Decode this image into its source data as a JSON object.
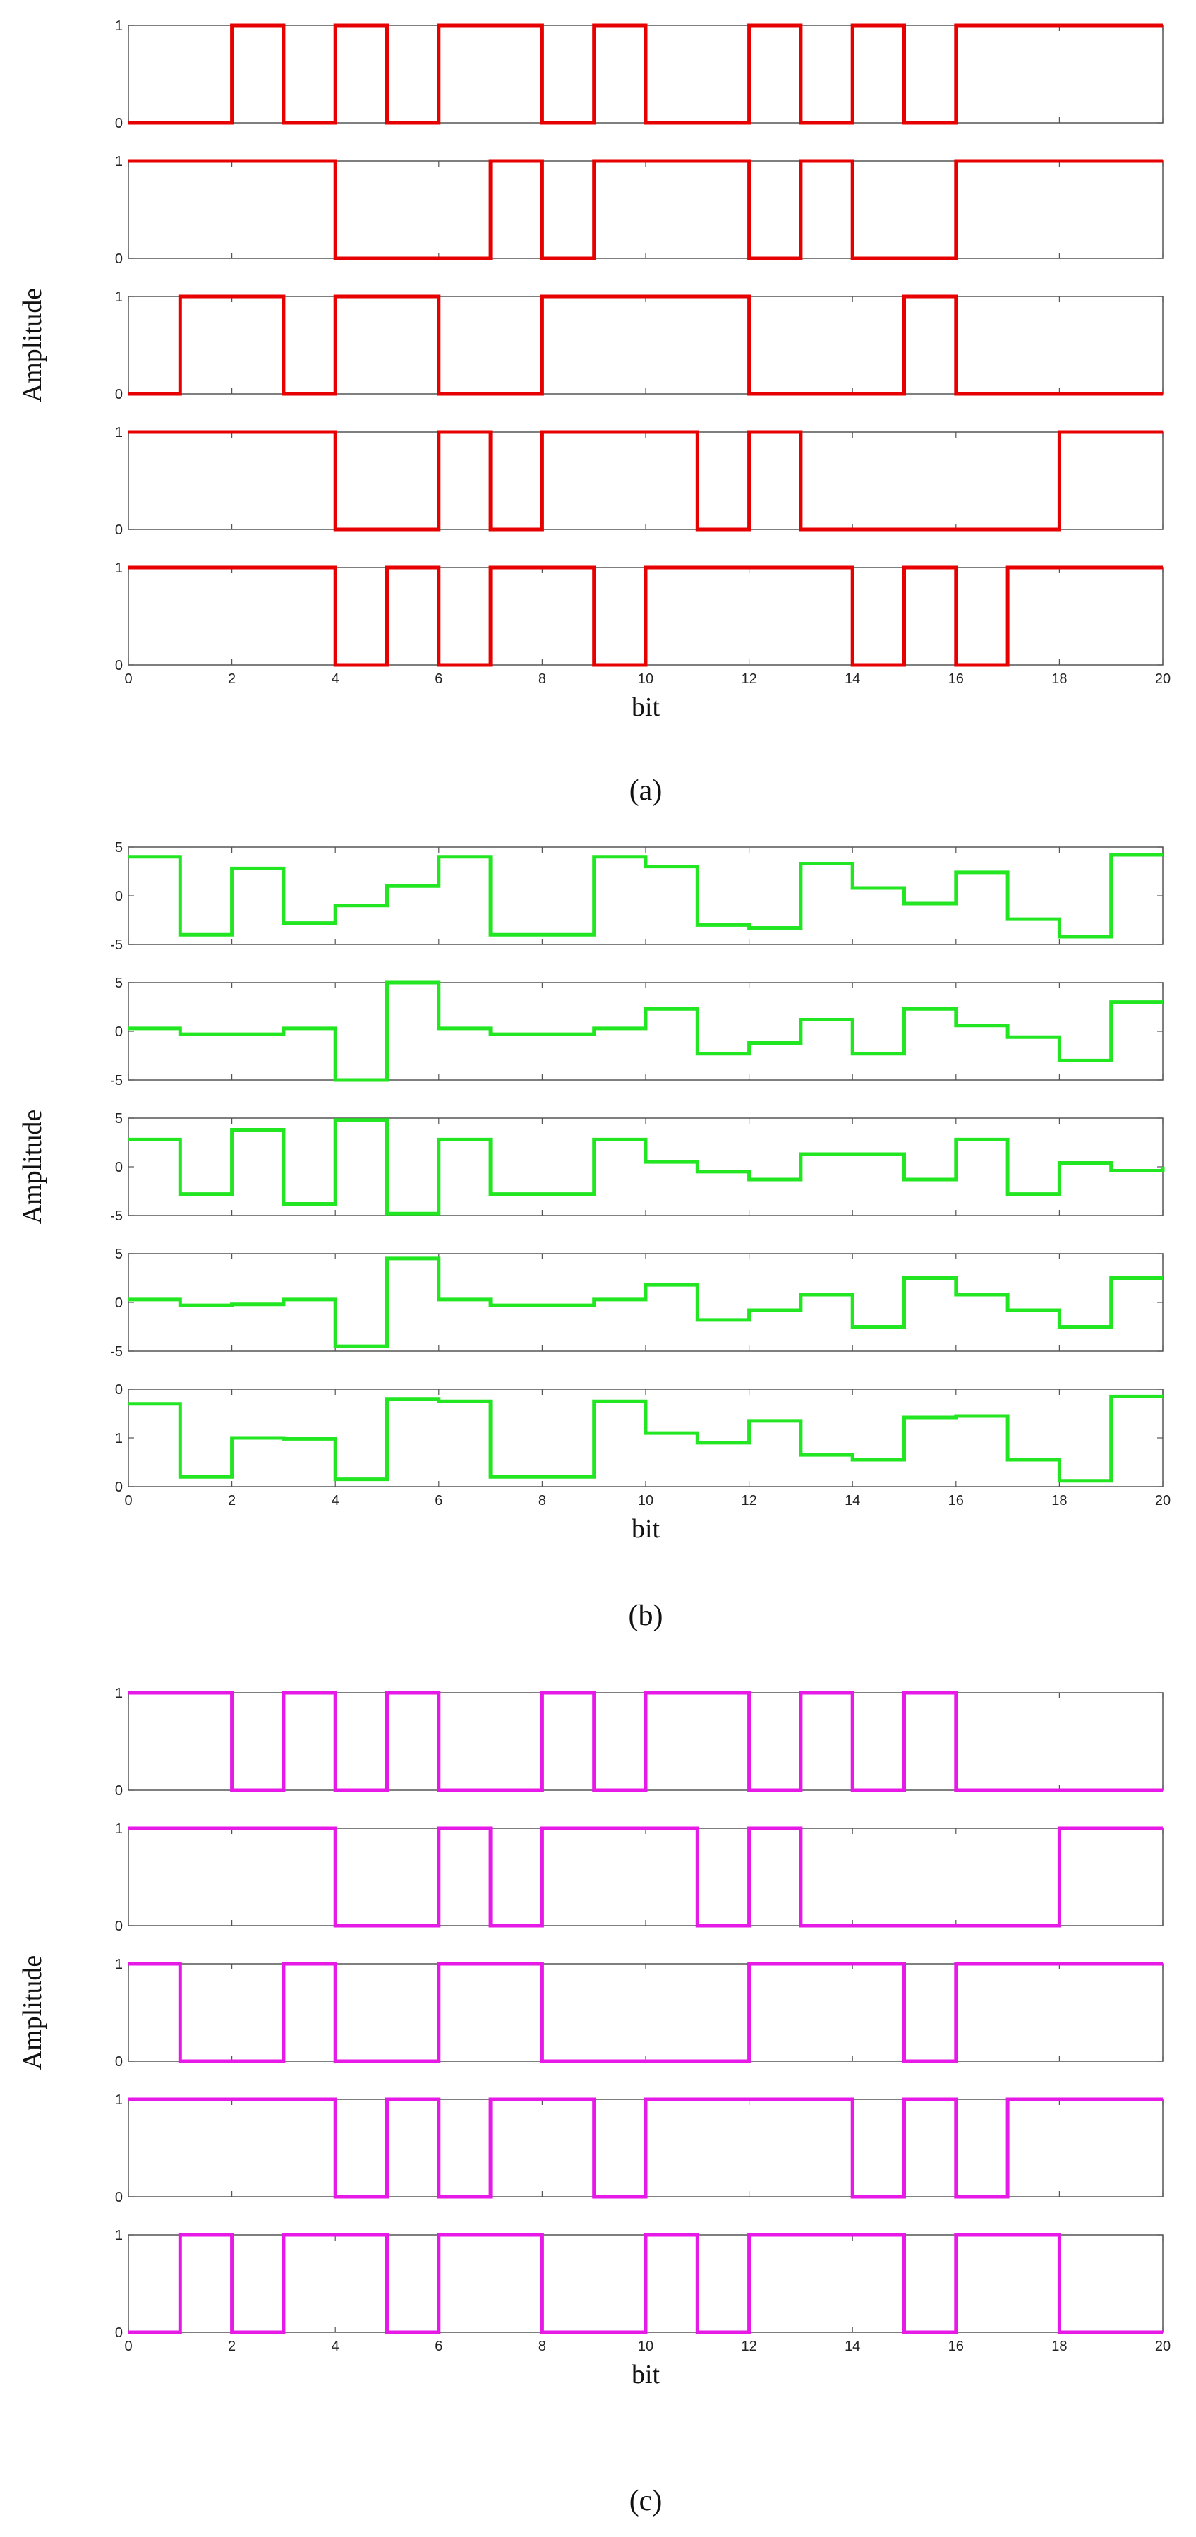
{
  "figure": {
    "ylabel": "Amplitude",
    "xlabel": "bit"
  },
  "chart_data": [
    {
      "panel": "(a)",
      "caption": "(a)",
      "type": "line",
      "step": "post",
      "color": "#e60000",
      "xlabel": "bit",
      "ylabel": "Amplitude",
      "xlim": [
        0,
        20
      ],
      "xticks": [
        0,
        2,
        4,
        6,
        8,
        10,
        12,
        14,
        16,
        18,
        20
      ],
      "subplots": [
        {
          "ylim": [
            0,
            1
          ],
          "yticks": [
            0,
            1
          ],
          "x": [
            0,
            1,
            2,
            3,
            4,
            5,
            6,
            7,
            8,
            9,
            10,
            11,
            12,
            13,
            14,
            15,
            16,
            17,
            18,
            19,
            20
          ],
          "values": [
            0,
            0,
            1,
            0,
            1,
            0,
            1,
            1,
            0,
            1,
            0,
            0,
            1,
            0,
            1,
            0,
            1,
            1,
            1,
            1,
            1
          ]
        },
        {
          "ylim": [
            0,
            1
          ],
          "yticks": [
            0,
            1
          ],
          "x": [
            0,
            1,
            2,
            3,
            4,
            5,
            6,
            7,
            8,
            9,
            10,
            11,
            12,
            13,
            14,
            15,
            16,
            17,
            18,
            19,
            20
          ],
          "values": [
            1,
            1,
            1,
            1,
            0,
            0,
            0,
            1,
            0,
            1,
            1,
            1,
            0,
            1,
            0,
            0,
            1,
            1,
            1,
            1,
            1
          ]
        },
        {
          "ylim": [
            0,
            1
          ],
          "yticks": [
            0,
            1
          ],
          "x": [
            0,
            1,
            2,
            3,
            4,
            5,
            6,
            7,
            8,
            9,
            10,
            11,
            12,
            13,
            14,
            15,
            16,
            17,
            18,
            19,
            20
          ],
          "values": [
            0,
            1,
            1,
            0,
            1,
            1,
            0,
            0,
            1,
            1,
            1,
            1,
            0,
            0,
            0,
            1,
            0,
            0,
            0,
            0,
            0
          ]
        },
        {
          "ylim": [
            0,
            1
          ],
          "yticks": [
            0,
            1
          ],
          "x": [
            0,
            1,
            2,
            3,
            4,
            5,
            6,
            7,
            8,
            9,
            10,
            11,
            12,
            13,
            14,
            15,
            16,
            17,
            18,
            19,
            20
          ],
          "values": [
            1,
            1,
            1,
            1,
            0,
            0,
            1,
            0,
            1,
            1,
            1,
            0,
            1,
            0,
            0,
            0,
            0,
            0,
            1,
            1,
            1
          ]
        },
        {
          "ylim": [
            0,
            1
          ],
          "yticks": [
            0,
            1
          ],
          "x": [
            0,
            1,
            2,
            3,
            4,
            5,
            6,
            7,
            8,
            9,
            10,
            11,
            12,
            13,
            14,
            15,
            16,
            17,
            18,
            19,
            20
          ],
          "values": [
            1,
            1,
            1,
            1,
            0,
            1,
            0,
            1,
            1,
            0,
            1,
            1,
            1,
            1,
            0,
            1,
            0,
            1,
            1,
            1,
            1
          ]
        }
      ]
    },
    {
      "panel": "(b)",
      "caption": "(b)",
      "type": "line",
      "step": "post",
      "color": "#22e622",
      "xlabel": "bit",
      "ylabel": "Amplitude",
      "xlim": [
        0,
        20
      ],
      "xticks": [
        0,
        2,
        4,
        6,
        8,
        10,
        12,
        14,
        16,
        18,
        20
      ],
      "subplots": [
        {
          "ylim": [
            -5,
            5
          ],
          "yticks": [
            -5,
            0,
            5
          ],
          "x": [
            0,
            1,
            2,
            3,
            4,
            5,
            6,
            7,
            8,
            9,
            10,
            11,
            12,
            13,
            14,
            15,
            16,
            17,
            18,
            19,
            20
          ],
          "values": [
            4,
            -4,
            2.8,
            -2.8,
            -1,
            1,
            4,
            -4,
            -4,
            4,
            3,
            -3,
            -3.3,
            3.3,
            0.8,
            -0.8,
            2.4,
            -2.4,
            -4.2,
            4.2,
            4.2
          ]
        },
        {
          "ylim": [
            -5,
            5
          ],
          "yticks": [
            -5,
            0,
            5
          ],
          "x": [
            0,
            1,
            2,
            3,
            4,
            5,
            6,
            7,
            8,
            9,
            10,
            11,
            12,
            13,
            14,
            15,
            16,
            17,
            18,
            19,
            20
          ],
          "values": [
            0.3,
            -0.3,
            -0.3,
            0.3,
            -5,
            5,
            0.3,
            -0.3,
            -0.3,
            0.3,
            2.3,
            -2.3,
            -1.2,
            1.2,
            -2.3,
            2.3,
            0.6,
            -0.6,
            -3,
            3,
            3
          ]
        },
        {
          "ylim": [
            -5,
            5
          ],
          "yticks": [
            -5,
            0,
            5
          ],
          "x": [
            0,
            1,
            2,
            3,
            4,
            5,
            6,
            7,
            8,
            9,
            10,
            11,
            12,
            13,
            14,
            15,
            16,
            17,
            18,
            19,
            20
          ],
          "values": [
            2.8,
            -2.8,
            3.8,
            -3.8,
            4.8,
            -4.8,
            2.8,
            -2.8,
            -2.8,
            2.8,
            0.5,
            -0.5,
            -1.3,
            1.3,
            1.3,
            -1.3,
            2.8,
            -2.8,
            0.4,
            -0.4,
            0
          ]
        },
        {
          "ylim": [
            -5,
            5
          ],
          "yticks": [
            -5,
            0,
            5
          ],
          "x": [
            0,
            1,
            2,
            3,
            4,
            5,
            6,
            7,
            8,
            9,
            10,
            11,
            12,
            13,
            14,
            15,
            16,
            17,
            18,
            19,
            20
          ],
          "values": [
            0.3,
            -0.3,
            -0.2,
            0.3,
            -4.5,
            4.5,
            0.3,
            -0.3,
            -0.3,
            0.3,
            1.8,
            -1.8,
            -0.8,
            0.8,
            -2.5,
            2.5,
            0.8,
            -0.8,
            -2.5,
            2.5,
            2.5
          ]
        },
        {
          "ylim": [
            0,
            2
          ],
          "yticks": [
            0,
            1,
            0
          ],
          "x": [
            0,
            1,
            2,
            3,
            4,
            5,
            6,
            7,
            8,
            9,
            10,
            11,
            12,
            13,
            14,
            15,
            16,
            17,
            18,
            19,
            20
          ],
          "values": [
            1.7,
            0.2,
            1,
            0.98,
            0.15,
            1.8,
            1.75,
            0.2,
            0.2,
            1.75,
            1.1,
            0.9,
            1.35,
            0.65,
            0.55,
            1.42,
            1.45,
            0.55,
            0.12,
            1.85,
            1.85
          ]
        }
      ]
    },
    {
      "panel": "(c)",
      "caption": "(c)",
      "type": "line",
      "step": "post",
      "color": "#e619e6",
      "xlabel": "bit",
      "ylabel": "Amplitude",
      "xlim": [
        0,
        20
      ],
      "xticks": [
        0,
        2,
        4,
        6,
        8,
        10,
        12,
        14,
        16,
        18,
        20
      ],
      "subplots": [
        {
          "ylim": [
            0,
            1
          ],
          "yticks": [
            0,
            1
          ],
          "x": [
            0,
            1,
            2,
            3,
            4,
            5,
            6,
            7,
            8,
            9,
            10,
            11,
            12,
            13,
            14,
            15,
            16,
            17,
            18,
            19,
            20
          ],
          "values": [
            1,
            1,
            0,
            1,
            0,
            1,
            0,
            0,
            1,
            0,
            1,
            1,
            0,
            1,
            0,
            1,
            0,
            0,
            0,
            0,
            0
          ]
        },
        {
          "ylim": [
            0,
            1
          ],
          "yticks": [
            0,
            1
          ],
          "x": [
            0,
            1,
            2,
            3,
            4,
            5,
            6,
            7,
            8,
            9,
            10,
            11,
            12,
            13,
            14,
            15,
            16,
            17,
            18,
            19,
            20
          ],
          "values": [
            1,
            1,
            1,
            1,
            0,
            0,
            1,
            0,
            1,
            1,
            1,
            0,
            1,
            0,
            0,
            0,
            0,
            0,
            1,
            1,
            1
          ]
        },
        {
          "ylim": [
            0,
            1
          ],
          "yticks": [
            0,
            1
          ],
          "x": [
            0,
            1,
            2,
            3,
            4,
            5,
            6,
            7,
            8,
            9,
            10,
            11,
            12,
            13,
            14,
            15,
            16,
            17,
            18,
            19,
            20
          ],
          "values": [
            1,
            0,
            0,
            1,
            0,
            0,
            1,
            1,
            0,
            0,
            0,
            0,
            1,
            1,
            1,
            0,
            1,
            1,
            1,
            1,
            1
          ]
        },
        {
          "ylim": [
            0,
            1
          ],
          "yticks": [
            0,
            1
          ],
          "x": [
            0,
            1,
            2,
            3,
            4,
            5,
            6,
            7,
            8,
            9,
            10,
            11,
            12,
            13,
            14,
            15,
            16,
            17,
            18,
            19,
            20
          ],
          "values": [
            1,
            1,
            1,
            1,
            0,
            1,
            0,
            1,
            1,
            0,
            1,
            1,
            1,
            1,
            0,
            1,
            0,
            1,
            1,
            1,
            1
          ]
        },
        {
          "ylim": [
            0,
            1
          ],
          "yticks": [
            0,
            1
          ],
          "x": [
            0,
            1,
            2,
            3,
            4,
            5,
            6,
            7,
            8,
            9,
            10,
            11,
            12,
            13,
            14,
            15,
            16,
            17,
            18,
            19,
            20
          ],
          "values": [
            0,
            1,
            0,
            1,
            1,
            0,
            1,
            1,
            0,
            0,
            1,
            0,
            1,
            1,
            1,
            0,
            1,
            1,
            0,
            0,
            0
          ]
        }
      ]
    }
  ]
}
